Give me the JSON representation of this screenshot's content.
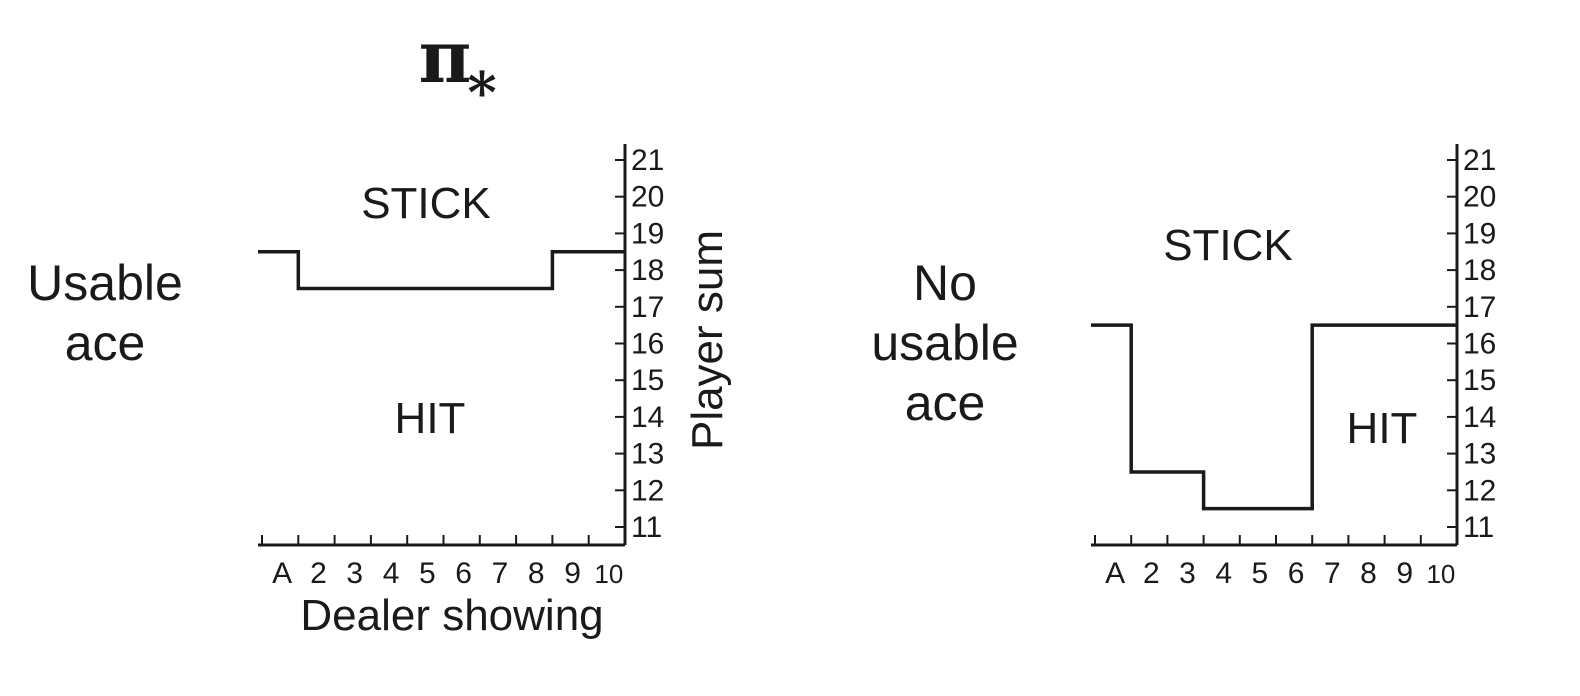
{
  "chart_data": {
    "title": "π",
    "title_subscript": "*",
    "type": "step",
    "categories": [
      "A",
      "2",
      "3",
      "4",
      "5",
      "6",
      "7",
      "8",
      "9",
      "10"
    ],
    "y_ticks": [
      "11",
      "12",
      "13",
      "14",
      "15",
      "16",
      "17",
      "18",
      "19",
      "20",
      "21"
    ],
    "xlabel": "Dealer showing",
    "ylabel": "Player sum",
    "ylim": [
      11,
      21
    ],
    "panels": [
      {
        "row_label": [
          "Usable",
          "ace"
        ],
        "region_above": "STICK",
        "region_below": "HIT",
        "boundary": [
          18.5,
          17.5,
          17.5,
          17.5,
          17.5,
          17.5,
          17.5,
          17.5,
          18.5,
          18.5
        ],
        "show_axis_labels": true
      },
      {
        "row_label": [
          "No",
          "usable",
          "ace"
        ],
        "region_above": "STICK",
        "region_below": "HIT",
        "boundary": [
          16.5,
          12.5,
          12.5,
          11.5,
          11.5,
          11.5,
          16.5,
          16.5,
          16.5,
          16.5
        ],
        "show_axis_labels": false
      }
    ]
  }
}
